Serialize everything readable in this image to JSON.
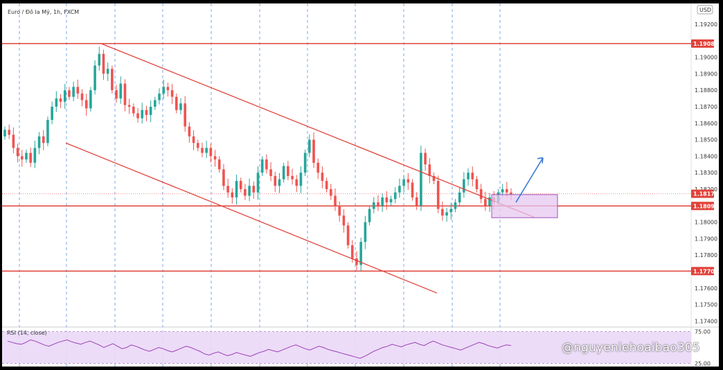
{
  "chart_data": {
    "type": "candlestick",
    "symbol": "Euro / Đô la Mỹ, 1h, FXCM",
    "currency": "USD",
    "y_ticks": [
      "1.19200",
      "1.19000",
      "1.18900",
      "1.18800",
      "1.18700",
      "1.18600",
      "1.18500",
      "1.18400",
      "1.18300",
      "1.18200",
      "1.18000",
      "1.17900",
      "1.17800",
      "1.17600",
      "1.17500",
      "1.17400"
    ],
    "price_labels": [
      {
        "label": "1.19083",
        "value": 1.19083
      },
      {
        "label": "1.18172",
        "value": 1.18172
      },
      {
        "label": "1.18098",
        "value": 1.18098
      },
      {
        "label": "1.17703",
        "value": 1.17703
      }
    ],
    "horizontal_levels": [
      1.19083,
      1.18098,
      1.17703
    ],
    "current_price": 1.18172,
    "series_close": [
      1.1856,
      1.1853,
      1.1845,
      1.184,
      1.1838,
      1.1842,
      1.1836,
      1.1845,
      1.1852,
      1.1848,
      1.1862,
      1.187,
      1.1875,
      1.1873,
      1.188,
      1.1876,
      1.1882,
      1.1878,
      1.1874,
      1.1869,
      1.188,
      1.1895,
      1.1902,
      1.189,
      1.1893,
      1.188,
      1.1875,
      1.1884,
      1.1871,
      1.187,
      1.1866,
      1.1863,
      1.1868,
      1.1865,
      1.187,
      1.1874,
      1.1878,
      1.1882,
      1.188,
      1.1876,
      1.1868,
      1.1872,
      1.1858,
      1.1852,
      1.1848,
      1.1845,
      1.1842,
      1.1845,
      1.184,
      1.1838,
      1.1832,
      1.1822,
      1.1818,
      1.1815,
      1.1825,
      1.182,
      1.1816,
      1.1822,
      1.1818,
      1.183,
      1.1838,
      1.1832,
      1.1828,
      1.1822,
      1.1826,
      1.1834,
      1.1828,
      1.1826,
      1.1822,
      1.183,
      1.1842,
      1.185,
      1.1836,
      1.183,
      1.1825,
      1.182,
      1.1816,
      1.181,
      1.1804,
      1.1798,
      1.1786,
      1.1778,
      1.1774,
      1.1788,
      1.18,
      1.1808,
      1.1812,
      1.181,
      1.1815,
      1.1812,
      1.1814,
      1.1818,
      1.1822,
      1.1826,
      1.1824,
      1.1815,
      1.181,
      1.1842,
      1.1835,
      1.1828,
      1.1825,
      1.1808,
      1.1804,
      1.1806,
      1.1808,
      1.1812,
      1.1818,
      1.1826,
      1.183,
      1.1826,
      1.182,
      1.1814,
      1.181,
      1.1815,
      1.1812,
      1.1818,
      1.182,
      1.1818,
      1.1817
    ],
    "rsi": {
      "label": "RSI (14, close)",
      "upper": "75.00",
      "lower": "25.00",
      "values": [
        60,
        58,
        56,
        55,
        58,
        62,
        60,
        57,
        54,
        52,
        55,
        58,
        60,
        62,
        59,
        57,
        55,
        58,
        60,
        57,
        54,
        50,
        53,
        56,
        52,
        48,
        50,
        54,
        52,
        49,
        46,
        44,
        47,
        50,
        48,
        45,
        43,
        46,
        49,
        52,
        50,
        47,
        44,
        40,
        38,
        41,
        43,
        40,
        37,
        39,
        42,
        40,
        38,
        36,
        39,
        42,
        44,
        47,
        45,
        43,
        46,
        49,
        52,
        54,
        51,
        48,
        46,
        49,
        52,
        50,
        47,
        45,
        43,
        41,
        39,
        37,
        35,
        33,
        36,
        40,
        44,
        47,
        50,
        52,
        55,
        53,
        51,
        54,
        56,
        58,
        55,
        53,
        57,
        60,
        57,
        54,
        52,
        50,
        48,
        46,
        49,
        52,
        55,
        58,
        56,
        53,
        51,
        49,
        52,
        54,
        53
      ]
    }
  },
  "watermark": "@nguyenlehoaibao305"
}
